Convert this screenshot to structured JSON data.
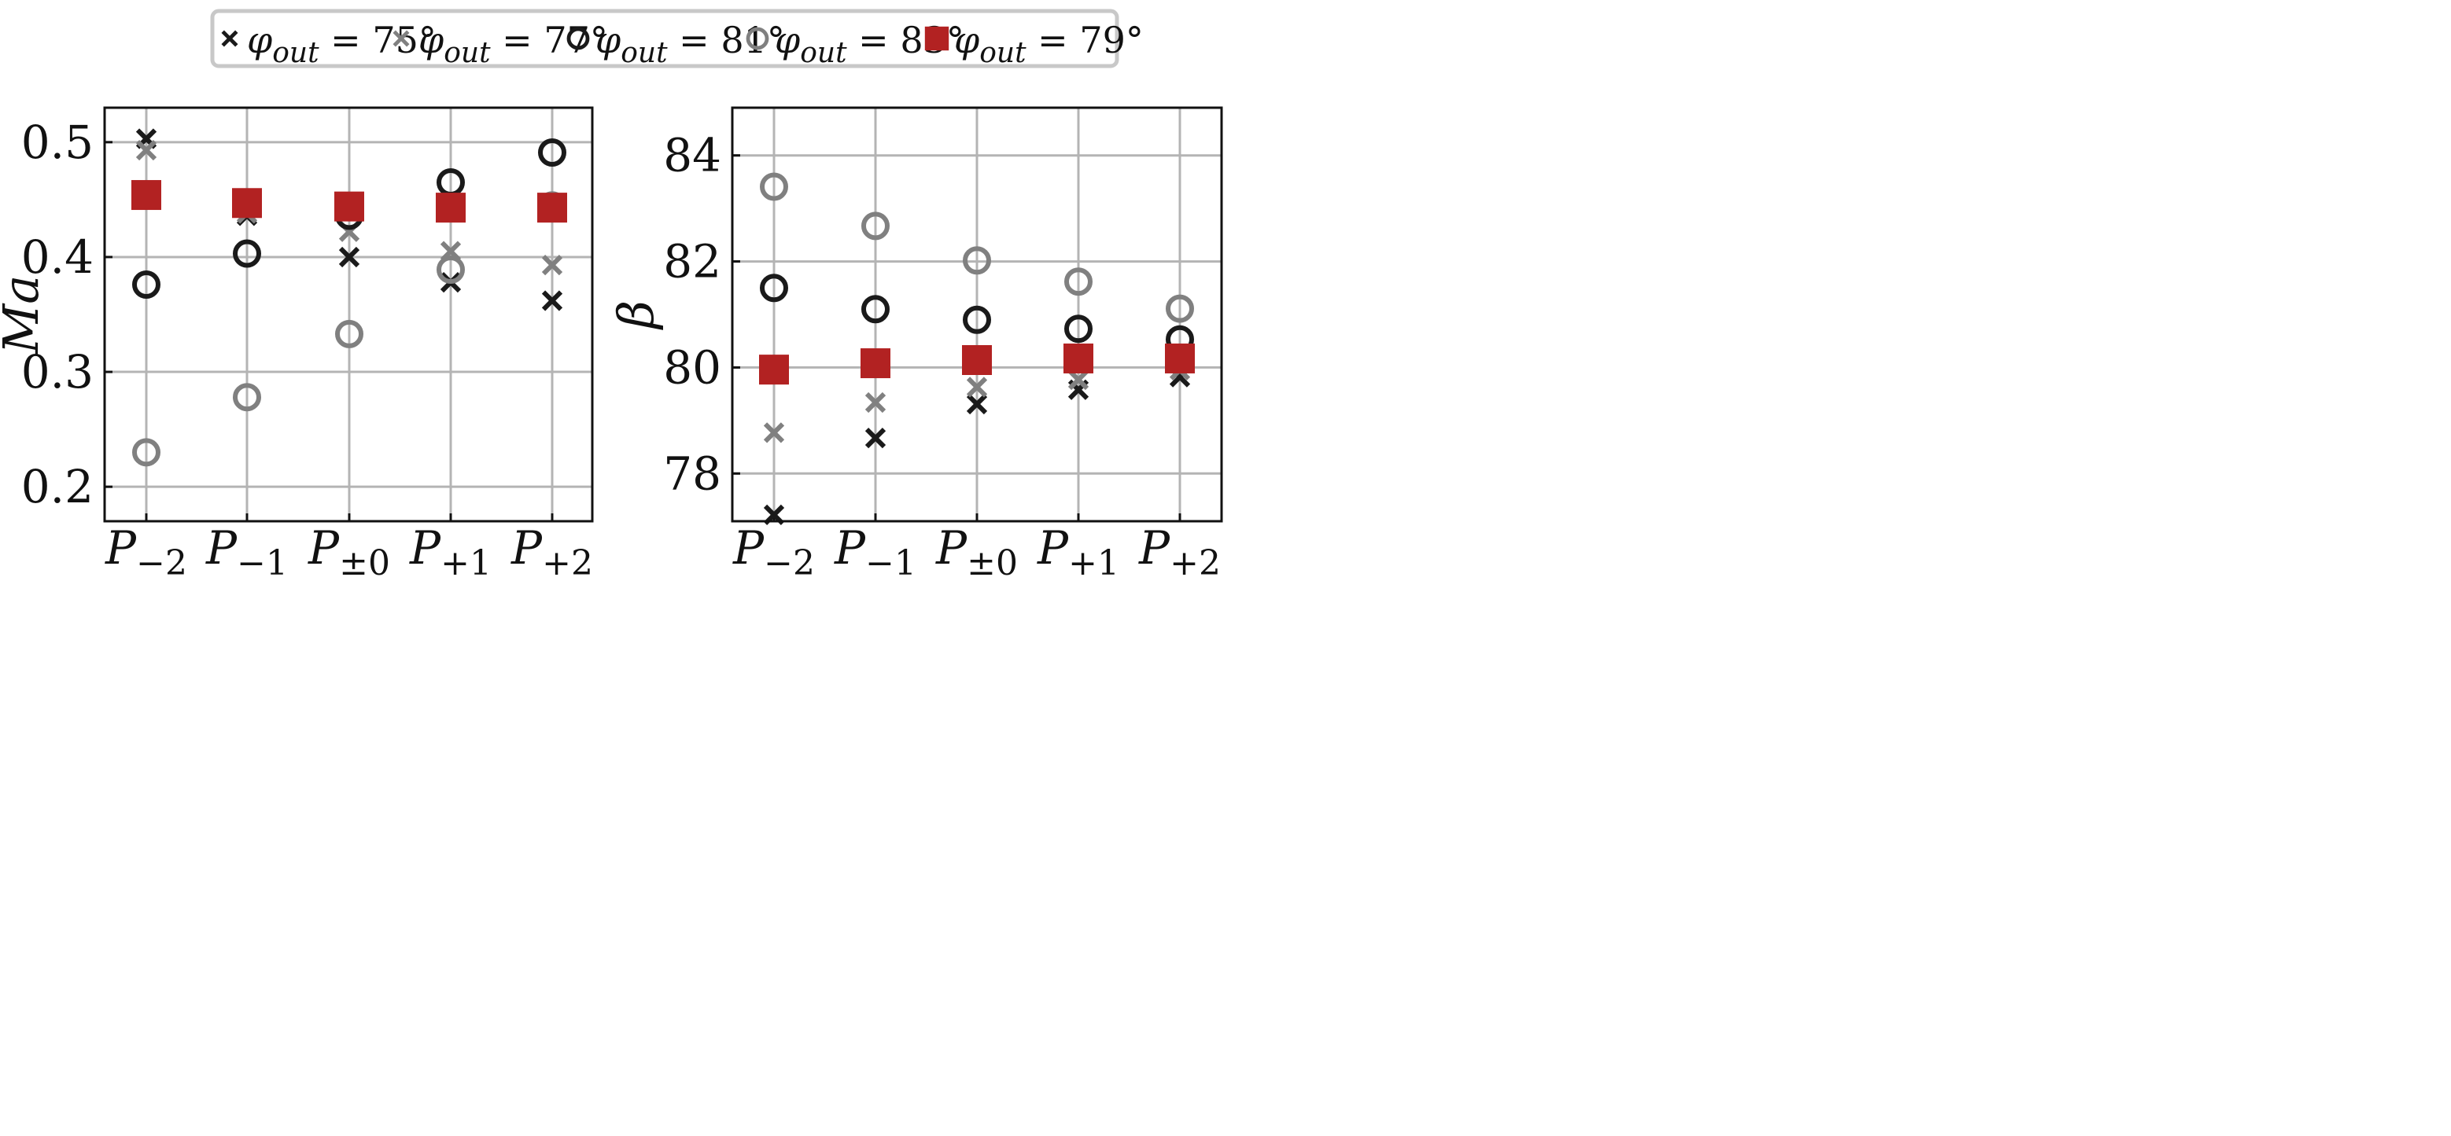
{
  "legend": {
    "entries": [
      {
        "label": "φ_out = 75°",
        "marker": "x",
        "color": "#1a1a1a"
      },
      {
        "label": "φ_out = 77°",
        "marker": "x",
        "color": "#808080"
      },
      {
        "label": "φ_out = 81°",
        "marker": "circle",
        "color": "#1a1a1a"
      },
      {
        "label": "φ_out = 83°",
        "marker": "circle",
        "color": "#808080"
      },
      {
        "label": "φ_out = 79°",
        "marker": "square",
        "color": "#b22222"
      }
    ]
  },
  "chart_data": [
    {
      "type": "scatter",
      "ylabel": "Ma",
      "xlabel": "",
      "categories": [
        "P−2",
        "P−1",
        "P±0",
        "P+1",
        "P+2"
      ],
      "ylim": [
        0.17,
        0.53
      ],
      "yticks": [
        0.2,
        0.3,
        0.4,
        0.5
      ],
      "grid": true,
      "series": [
        {
          "name": "φ_out = 75°",
          "values": [
            0.503,
            0.436,
            0.4,
            0.378,
            0.362
          ]
        },
        {
          "name": "φ_out = 77°",
          "values": [
            0.493,
            0.438,
            0.422,
            0.405,
            0.393
          ]
        },
        {
          "name": "φ_out = 81°",
          "values": [
            0.376,
            0.403,
            0.436,
            0.465,
            0.491
          ]
        },
        {
          "name": "φ_out = 83°",
          "values": [
            0.23,
            0.278,
            0.333,
            0.389,
            0.445
          ]
        },
        {
          "name": "φ_out = 79°",
          "values": [
            0.454,
            0.447,
            0.444,
            0.443,
            0.443
          ]
        }
      ]
    },
    {
      "type": "scatter",
      "ylabel": "β",
      "xlabel": "",
      "categories": [
        "P−2",
        "P−1",
        "P±0",
        "P+1",
        "P+2"
      ],
      "ylim": [
        77.1,
        84.9
      ],
      "yticks": [
        78,
        80,
        82,
        84
      ],
      "grid": true,
      "series": [
        {
          "name": "φ_out = 75°",
          "values": [
            77.22,
            78.67,
            79.31,
            79.58,
            79.82
          ]
        },
        {
          "name": "φ_out = 77°",
          "values": [
            78.77,
            79.34,
            79.63,
            79.77,
            79.95
          ]
        },
        {
          "name": "φ_out = 81°",
          "values": [
            81.5,
            81.1,
            80.9,
            80.73,
            80.53
          ]
        },
        {
          "name": "φ_out = 83°",
          "values": [
            83.41,
            82.67,
            82.02,
            81.62,
            81.11
          ]
        },
        {
          "name": "φ_out = 79°",
          "values": [
            79.96,
            80.08,
            80.14,
            80.17,
            80.17
          ]
        }
      ]
    }
  ]
}
